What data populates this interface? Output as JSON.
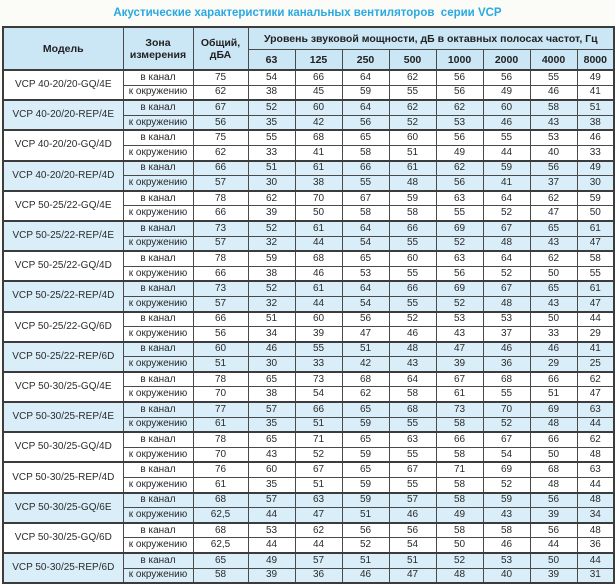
{
  "title": "Акустические характеристики канальных вентиляторов  серии VCP",
  "colors": {
    "title_text": "#29a9e0",
    "header_bg": "#cbe6f5",
    "shaded_row_bg": "#d9eef9",
    "border": "#4a4a4a"
  },
  "table": {
    "headers": {
      "model": "Модель",
      "zone": "Зона измерения",
      "total": "Общий, дБА",
      "octave_group": "Уровень звуковой мощности, дБ в октавных полосах частот, Гц",
      "frequencies": [
        "63",
        "125",
        "250",
        "500",
        "1000",
        "2000",
        "4000",
        "8000"
      ]
    },
    "zone_labels": [
      "в канал",
      "к окружению"
    ],
    "rows": [
      {
        "model": "VCP 40-20/20-GQ/4E",
        "shaded": false,
        "in_duct": {
          "total": "75",
          "bands": [
            "54",
            "66",
            "64",
            "62",
            "56",
            "56",
            "55",
            "49"
          ]
        },
        "to_surroundings": {
          "total": "62",
          "bands": [
            "38",
            "45",
            "59",
            "55",
            "56",
            "49",
            "46",
            "41"
          ]
        }
      },
      {
        "model": "VCP 40-20/20-REP/4E",
        "shaded": true,
        "in_duct": {
          "total": "67",
          "bands": [
            "52",
            "60",
            "64",
            "62",
            "62",
            "60",
            "58",
            "51"
          ]
        },
        "to_surroundings": {
          "total": "56",
          "bands": [
            "35",
            "42",
            "56",
            "52",
            "53",
            "46",
            "43",
            "38"
          ]
        }
      },
      {
        "model": "VCP 40-20/20-GQ/4D",
        "shaded": false,
        "in_duct": {
          "total": "75",
          "bands": [
            "55",
            "68",
            "65",
            "60",
            "56",
            "55",
            "53",
            "46"
          ]
        },
        "to_surroundings": {
          "total": "62",
          "bands": [
            "33",
            "41",
            "58",
            "51",
            "49",
            "44",
            "40",
            "33"
          ]
        }
      },
      {
        "model": "VCP 40-20/20-REP/4D",
        "shaded": true,
        "in_duct": {
          "total": "66",
          "bands": [
            "51",
            "61",
            "66",
            "61",
            "62",
            "59",
            "56",
            "49"
          ]
        },
        "to_surroundings": {
          "total": "57",
          "bands": [
            "30",
            "38",
            "55",
            "48",
            "56",
            "41",
            "37",
            "30"
          ]
        }
      },
      {
        "model": "VCP 50-25/22-GQ/4E",
        "shaded": false,
        "in_duct": {
          "total": "78",
          "bands": [
            "62",
            "70",
            "67",
            "59",
            "63",
            "64",
            "62",
            "59"
          ]
        },
        "to_surroundings": {
          "total": "66",
          "bands": [
            "39",
            "50",
            "58",
            "58",
            "55",
            "52",
            "47",
            "50"
          ]
        }
      },
      {
        "model": "VCP 50-25/22-REP/4E",
        "shaded": true,
        "in_duct": {
          "total": "73",
          "bands": [
            "52",
            "61",
            "64",
            "66",
            "69",
            "67",
            "65",
            "61"
          ]
        },
        "to_surroundings": {
          "total": "57",
          "bands": [
            "32",
            "44",
            "54",
            "55",
            "52",
            "48",
            "43",
            "47"
          ]
        }
      },
      {
        "model": "VCP 50-25/22-GQ/4D",
        "shaded": false,
        "in_duct": {
          "total": "78",
          "bands": [
            "59",
            "68",
            "65",
            "60",
            "63",
            "64",
            "62",
            "58"
          ]
        },
        "to_surroundings": {
          "total": "66",
          "bands": [
            "38",
            "46",
            "53",
            "55",
            "56",
            "52",
            "50",
            "55"
          ]
        }
      },
      {
        "model": "VCP 50-25/22-REP/4D",
        "shaded": true,
        "in_duct": {
          "total": "73",
          "bands": [
            "52",
            "61",
            "64",
            "66",
            "69",
            "67",
            "65",
            "61"
          ]
        },
        "to_surroundings": {
          "total": "57",
          "bands": [
            "32",
            "44",
            "54",
            "55",
            "52",
            "48",
            "43",
            "47"
          ]
        }
      },
      {
        "model": "VCP 50-25/22-GQ/6D",
        "shaded": false,
        "in_duct": {
          "total": "66",
          "bands": [
            "51",
            "60",
            "56",
            "52",
            "53",
            "53",
            "50",
            "44"
          ]
        },
        "to_surroundings": {
          "total": "56",
          "bands": [
            "34",
            "39",
            "47",
            "46",
            "43",
            "37",
            "33",
            "29"
          ]
        }
      },
      {
        "model": "VCP 50-25/22-REP/6D",
        "shaded": true,
        "in_duct": {
          "total": "60",
          "bands": [
            "46",
            "55",
            "51",
            "48",
            "47",
            "46",
            "46",
            "41"
          ]
        },
        "to_surroundings": {
          "total": "51",
          "bands": [
            "30",
            "33",
            "42",
            "43",
            "39",
            "36",
            "29",
            "25"
          ]
        }
      },
      {
        "model": "VCP 50-30/25-GQ/4E",
        "shaded": false,
        "in_duct": {
          "total": "78",
          "bands": [
            "65",
            "73",
            "68",
            "64",
            "67",
            "68",
            "66",
            "62"
          ]
        },
        "to_surroundings": {
          "total": "70",
          "bands": [
            "38",
            "54",
            "62",
            "58",
            "61",
            "55",
            "51",
            "47"
          ]
        }
      },
      {
        "model": "VCP 50-30/25-REP/4E",
        "shaded": true,
        "in_duct": {
          "total": "77",
          "bands": [
            "57",
            "66",
            "65",
            "68",
            "73",
            "70",
            "69",
            "63"
          ]
        },
        "to_surroundings": {
          "total": "61",
          "bands": [
            "35",
            "51",
            "59",
            "55",
            "58",
            "52",
            "48",
            "44"
          ]
        }
      },
      {
        "model": "VCP 50-30/25-GQ/4D",
        "shaded": false,
        "in_duct": {
          "total": "78",
          "bands": [
            "65",
            "71",
            "65",
            "63",
            "66",
            "67",
            "66",
            "62"
          ]
        },
        "to_surroundings": {
          "total": "70",
          "bands": [
            "43",
            "52",
            "59",
            "55",
            "58",
            "54",
            "50",
            "48"
          ]
        }
      },
      {
        "model": "VCP 50-30/25-REP/4D",
        "shaded": false,
        "in_duct": {
          "total": "76",
          "bands": [
            "60",
            "67",
            "65",
            "67",
            "71",
            "69",
            "68",
            "63"
          ]
        },
        "to_surroundings": {
          "total": "61",
          "bands": [
            "35",
            "51",
            "59",
            "55",
            "58",
            "52",
            "48",
            "44"
          ]
        }
      },
      {
        "model": "VCP 50-30/25-GQ/6E",
        "shaded": true,
        "in_duct": {
          "total": "68",
          "bands": [
            "57",
            "63",
            "59",
            "57",
            "58",
            "59",
            "56",
            "48"
          ]
        },
        "to_surroundings": {
          "total": "62,5",
          "bands": [
            "44",
            "47",
            "51",
            "46",
            "49",
            "43",
            "39",
            "34"
          ]
        }
      },
      {
        "model": "VCP 50-30/25-GQ/6D",
        "shaded": false,
        "in_duct": {
          "total": "68",
          "bands": [
            "53",
            "62",
            "56",
            "56",
            "58",
            "58",
            "56",
            "48"
          ]
        },
        "to_surroundings": {
          "total": "62,5",
          "bands": [
            "44",
            "44",
            "52",
            "54",
            "50",
            "46",
            "44",
            "36"
          ]
        }
      },
      {
        "model": "VCP 50-30/25-REP/6D",
        "shaded": true,
        "in_duct": {
          "total": "65",
          "bands": [
            "49",
            "57",
            "51",
            "51",
            "52",
            "53",
            "50",
            "44"
          ]
        },
        "to_surroundings": {
          "total": "58",
          "bands": [
            "39",
            "36",
            "46",
            "47",
            "48",
            "40",
            "39",
            "31"
          ]
        }
      }
    ]
  }
}
